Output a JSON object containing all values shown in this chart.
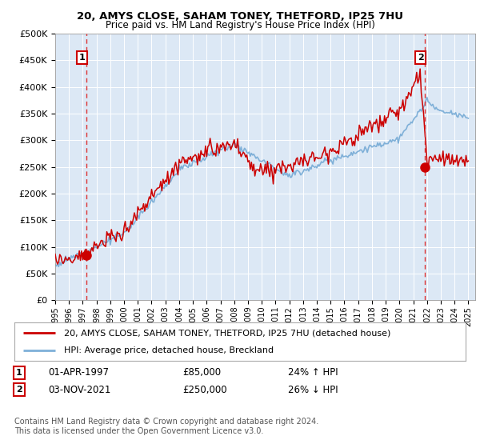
{
  "title1": "20, AMYS CLOSE, SAHAM TONEY, THETFORD, IP25 7HU",
  "title2": "Price paid vs. HM Land Registry's House Price Index (HPI)",
  "ylabel_ticks": [
    "£0",
    "£50K",
    "£100K",
    "£150K",
    "£200K",
    "£250K",
    "£300K",
    "£350K",
    "£400K",
    "£450K",
    "£500K"
  ],
  "ytick_values": [
    0,
    50000,
    100000,
    150000,
    200000,
    250000,
    300000,
    350000,
    400000,
    450000,
    500000
  ],
  "xlim_start": 1995.0,
  "xlim_end": 2025.5,
  "ylim_min": 0,
  "ylim_max": 500000,
  "sale1_date": 1997.25,
  "sale1_price": 85000,
  "sale1_label": "1",
  "sale2_date": 2021.84,
  "sale2_price": 250000,
  "sale2_label": "2",
  "legend_line1": "20, AMYS CLOSE, SAHAM TONEY, THETFORD, IP25 7HU (detached house)",
  "legend_line2": "HPI: Average price, detached house, Breckland",
  "annotation1_date": "01-APR-1997",
  "annotation1_price": "£85,000",
  "annotation1_hpi": "24% ↑ HPI",
  "annotation2_date": "03-NOV-2021",
  "annotation2_price": "£250,000",
  "annotation2_hpi": "26% ↓ HPI",
  "footer": "Contains HM Land Registry data © Crown copyright and database right 2024.\nThis data is licensed under the Open Government Licence v3.0.",
  "line_color_red": "#cc0000",
  "line_color_blue": "#7fb0d8",
  "bg_color": "#dce8f5",
  "grid_color": "#ffffff",
  "dashed_line_color": "#dd3333"
}
